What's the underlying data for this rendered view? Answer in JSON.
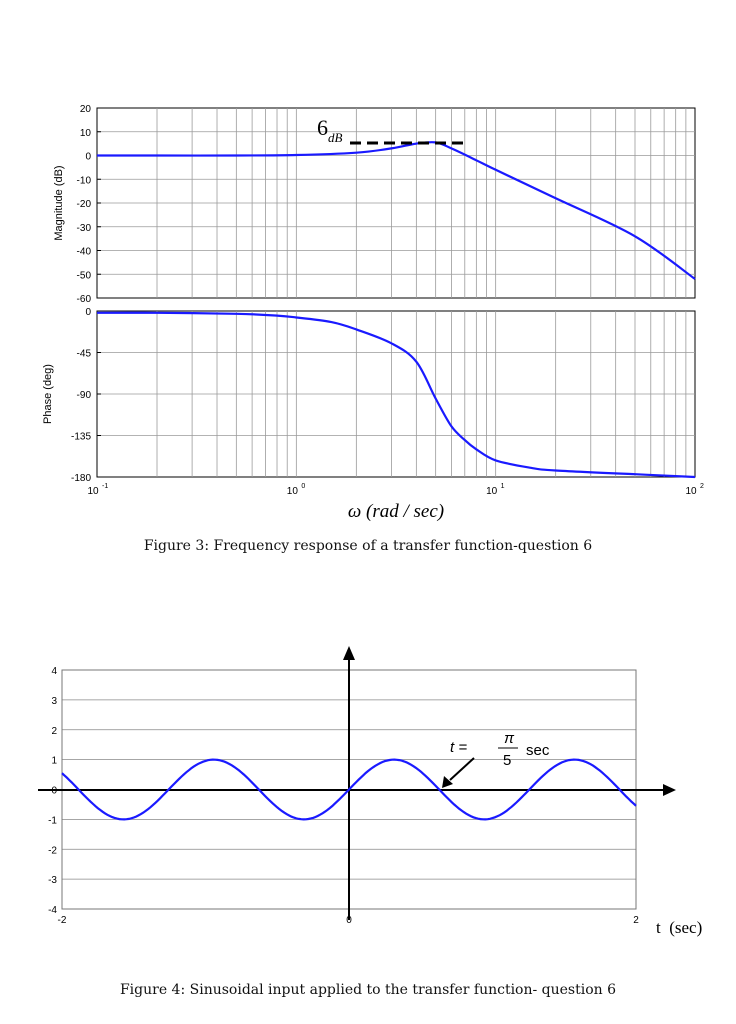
{
  "figure3": {
    "caption": "Figure 3: Frequency response of a transfer function-question 6",
    "x_label": "ω (rad / sec)",
    "x_ticks": [
      {
        "base": "10",
        "exp": "-1",
        "value": 0.1
      },
      {
        "base": "10",
        "exp": "0",
        "value": 1
      },
      {
        "base": "10",
        "exp": "1",
        "value": 10
      },
      {
        "base": "10",
        "exp": "2",
        "value": 100
      }
    ],
    "annotation": {
      "main": "6",
      "sub": "dB"
    },
    "line_color": "#1a1aff",
    "magnitude_label": "Magnitude (dB)",
    "phase_label": "Phase (deg)"
  },
  "figure4": {
    "caption": "Figure 4: Sinusoidal input applied to the transfer function- question 6",
    "x_axis_label": "t  (sec)",
    "x_ticks": [
      "-2",
      "0",
      "2"
    ],
    "y_ticks": [
      "4",
      "3",
      "2",
      "1",
      "0",
      "-1",
      "-2",
      "-3",
      "-4"
    ],
    "annotation": {
      "lhs": "t =",
      "num": "π",
      "den": "5",
      "unit": "sec"
    },
    "line_color": "#1a1aff"
  },
  "chart_data": [
    {
      "type": "line",
      "title": "",
      "xlabel": "ω (rad / sec)",
      "ylabel": "Magnitude (dB)",
      "xscale": "log",
      "xlim": [
        0.1,
        100
      ],
      "ylim": [
        -60,
        20
      ],
      "yticks": [
        "20",
        "10",
        "0",
        "-10",
        "-20",
        "-30",
        "-40",
        "-50",
        "-60"
      ],
      "grid": true,
      "x": [
        0.1,
        0.2,
        0.5,
        1,
        2,
        3,
        4,
        5,
        6,
        8,
        10,
        20,
        50,
        100
      ],
      "values": [
        0,
        0,
        0,
        0.2,
        1.2,
        3.0,
        5.0,
        5.5,
        3.0,
        -2.0,
        -6.0,
        -18.0,
        -34.0,
        -52.0
      ],
      "annotations": [
        "6 dB"
      ]
    },
    {
      "type": "line",
      "title": "",
      "xlabel": "ω (rad / sec)",
      "ylabel": "Phase (deg)",
      "xscale": "log",
      "xlim": [
        0.1,
        100
      ],
      "ylim": [
        -180,
        0
      ],
      "yticks": [
        "0",
        "-45",
        "-90",
        "-135",
        "-180"
      ],
      "grid": true,
      "x": [
        0.1,
        0.2,
        0.5,
        0.8,
        1,
        1.5,
        2,
        3,
        4,
        5,
        6,
        7,
        8,
        10,
        15,
        20,
        50,
        100
      ],
      "values": [
        -2,
        -2,
        -3,
        -5,
        -7,
        -12,
        -20,
        -35,
        -55,
        -95,
        -125,
        -140,
        -150,
        -162,
        -170,
        -173,
        -177,
        -180
      ]
    },
    {
      "type": "line",
      "title": "",
      "xlabel": "t  (sec)",
      "ylabel": "",
      "xlim": [
        -2,
        2
      ],
      "ylim": [
        -4,
        4
      ],
      "grid": true,
      "function": "sin(5t)",
      "x": [
        -2,
        -1.571,
        -0.942,
        -0.314,
        0,
        0.314,
        0.628,
        0.942,
        1.571,
        2
      ],
      "values": [
        0.544,
        -1,
        1,
        -1,
        0,
        1,
        0,
        -1,
        1,
        -0.544
      ],
      "annotations": [
        "t = π/5 sec"
      ]
    }
  ]
}
